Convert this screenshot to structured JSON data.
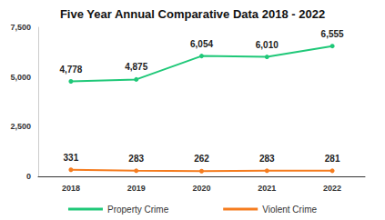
{
  "chart_data": {
    "type": "line",
    "title": "Five Year Annual Comparative Data 2018 - 2022",
    "categories": [
      "2018",
      "2019",
      "2020",
      "2021",
      "2022"
    ],
    "series": [
      {
        "name": "Property Crime",
        "color": "#1fc878",
        "values": [
          4778,
          4875,
          6054,
          6010,
          6555
        ],
        "value_labels": [
          "4,778",
          "4,875",
          "6,054",
          "6,010",
          "6,555"
        ]
      },
      {
        "name": "Violent Crime",
        "color": "#f57c1f",
        "values": [
          331,
          283,
          262,
          283,
          281
        ]
      }
    ],
    "ylim": [
      0,
      7500
    ],
    "yticks": [
      0,
      {
        "value": 2500,
        "label": "2,500"
      },
      {
        "value": 5000,
        "label": "5,000"
      },
      {
        "value": 7500,
        "label": "7,500"
      }
    ],
    "grid": false,
    "legend": "bottom",
    "data_labels": true,
    "marker": "circle",
    "line_style": "solid"
  }
}
